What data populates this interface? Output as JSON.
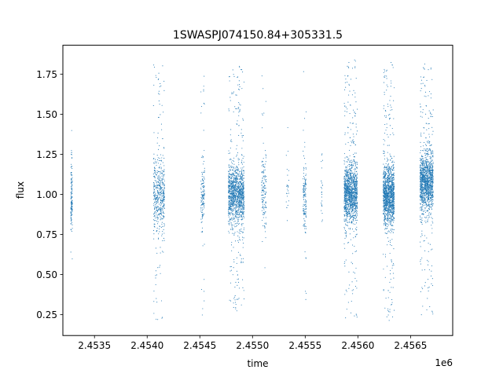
{
  "chart_data": {
    "type": "scatter",
    "title": "1SWASPJ074150.84+305331.5",
    "xlabel": "time",
    "ylabel": "flux",
    "x_offset_label": "1e6",
    "x_scale": 1000000,
    "xlim": [
      2453200,
      2456900
    ],
    "ylim": [
      0.12,
      1.93
    ],
    "x_ticks": [
      2453500,
      2454000,
      2454500,
      2455000,
      2455500,
      2456000,
      2456500
    ],
    "x_tick_labels": [
      "2.4535",
      "2.4540",
      "2.4545",
      "2.4550",
      "2.4555",
      "2.4560",
      "2.4565"
    ],
    "y_ticks": [
      0.25,
      0.5,
      0.75,
      1.0,
      1.25,
      1.5,
      1.75
    ],
    "y_tick_labels": [
      "0.25",
      "0.50",
      "0.75",
      "1.00",
      "1.25",
      "1.50",
      "1.75"
    ],
    "grid": false,
    "point_color": "#1f77b4",
    "observing_seasons": [
      {
        "x_start": 2453275,
        "x_end": 2453290,
        "y_center": 0.97,
        "y_min": 0.57,
        "y_max": 1.43,
        "density": "sparse"
      },
      {
        "x_start": 2454060,
        "x_end": 2454165,
        "y_center": 1.0,
        "y_min": 0.21,
        "y_max": 1.81,
        "density": "medium"
      },
      {
        "x_start": 2454510,
        "x_end": 2454545,
        "y_center": 1.0,
        "y_min": 0.24,
        "y_max": 1.78,
        "density": "sparse"
      },
      {
        "x_start": 2454770,
        "x_end": 2454920,
        "y_center": 1.0,
        "y_min": 0.27,
        "y_max": 1.8,
        "density": "dense"
      },
      {
        "x_start": 2455085,
        "x_end": 2455130,
        "y_center": 1.0,
        "y_min": 0.46,
        "y_max": 1.78,
        "density": "sparse"
      },
      {
        "x_start": 2455320,
        "x_end": 2455345,
        "y_center": 1.0,
        "y_min": 0.7,
        "y_max": 1.6,
        "density": "very sparse"
      },
      {
        "x_start": 2455480,
        "x_end": 2455510,
        "y_center": 1.0,
        "y_min": 0.32,
        "y_max": 1.85,
        "density": "sparse"
      },
      {
        "x_start": 2455650,
        "x_end": 2455665,
        "y_center": 1.0,
        "y_min": 0.8,
        "y_max": 1.32,
        "density": "very sparse"
      },
      {
        "x_start": 2455870,
        "x_end": 2455995,
        "y_center": 1.0,
        "y_min": 0.2,
        "y_max": 1.85,
        "density": "dense"
      },
      {
        "x_start": 2456240,
        "x_end": 2456345,
        "y_center": 1.0,
        "y_min": 0.21,
        "y_max": 1.83,
        "density": "dense"
      },
      {
        "x_start": 2456590,
        "x_end": 2456715,
        "y_center": 1.07,
        "y_min": 0.22,
        "y_max": 1.84,
        "density": "dense"
      }
    ]
  }
}
